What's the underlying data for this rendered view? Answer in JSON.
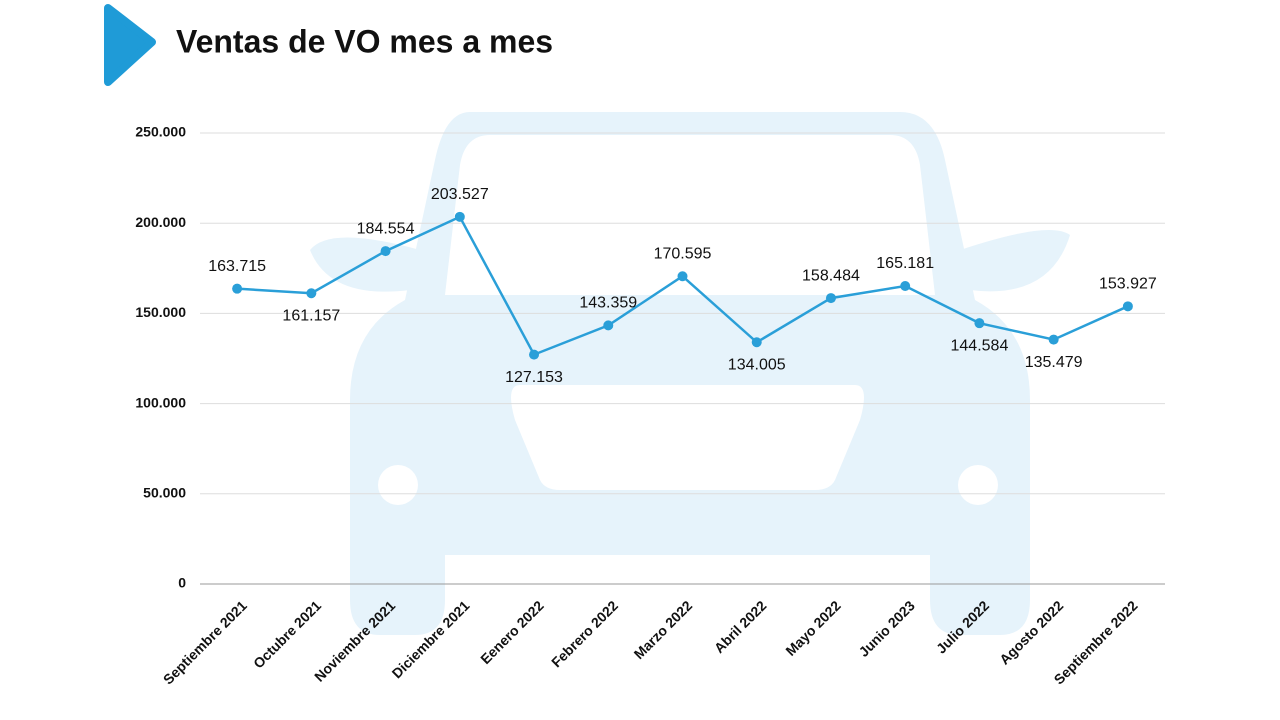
{
  "chart_data": {
    "type": "line",
    "title": "Ventas de VO mes a mes",
    "categories": [
      "Septiembre 2021",
      "Octubre 2021",
      "Noviembre 2021",
      "Diciembre 2021",
      "Eenero 2022",
      "Febrero 2022",
      "Marzo 2022",
      "Abril 2022",
      "Mayo 2022",
      "Junio 2023",
      "Julio 2022",
      "Agosto 2022",
      "Septiembre 2022"
    ],
    "series": [
      {
        "color": "#2a9fd8",
        "values": [
          163715,
          161157,
          184554,
          203527,
          127153,
          143359,
          170595,
          134005,
          158484,
          165181,
          144584,
          135479,
          153927
        ],
        "value_labels": [
          "163.715",
          "161.157",
          "184.554",
          "203.527",
          "127.153",
          "143.359",
          "170.595",
          "134.005",
          "158.484",
          "165.181",
          "144.584",
          "135.479",
          "153.927"
        ]
      }
    ],
    "ylim": [
      0,
      250000
    ],
    "yticks": [
      0,
      {
        "value": 50000,
        "label": "50.000"
      },
      {
        "value": 100000,
        "label": "100.000"
      },
      {
        "value": 150000,
        "label": "150.000"
      },
      {
        "value": 200000,
        "label": "200.000"
      },
      {
        "value": 250000,
        "label": "250.000"
      }
    ],
    "grid": true
  }
}
